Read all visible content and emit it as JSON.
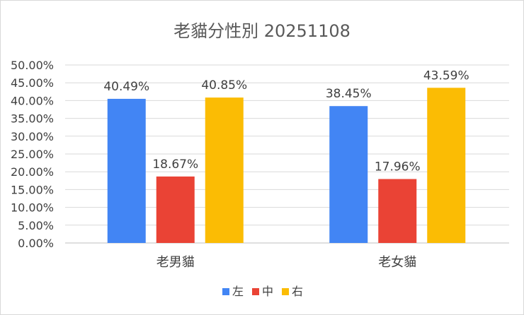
{
  "chart_data": {
    "type": "bar",
    "title": "老貓分性別 20251108",
    "categories": [
      "老男貓",
      "老女貓"
    ],
    "series": [
      {
        "name": "左",
        "color": "#4285F4",
        "values": [
          40.49,
          38.45
        ],
        "labels": [
          "40.49%",
          "38.45%"
        ]
      },
      {
        "name": "中",
        "color": "#EA4335",
        "values": [
          18.67,
          17.96
        ],
        "labels": [
          "18.67%",
          "17.96%"
        ]
      },
      {
        "name": "右",
        "color": "#FBBC04",
        "values": [
          40.85,
          43.59
        ],
        "labels": [
          "40.85%",
          "43.59%"
        ]
      }
    ],
    "ylim": [
      0,
      50
    ],
    "yticks": [
      0,
      5,
      10,
      15,
      20,
      25,
      30,
      35,
      40,
      45,
      50
    ],
    "ytick_labels": [
      "0.00%",
      "5.00%",
      "10.00%",
      "15.00%",
      "20.00%",
      "25.00%",
      "30.00%",
      "35.00%",
      "40.00%",
      "45.00%",
      "50.00%"
    ],
    "xlabel": "",
    "ylabel": "",
    "grid": true,
    "legend_position": "bottom"
  }
}
